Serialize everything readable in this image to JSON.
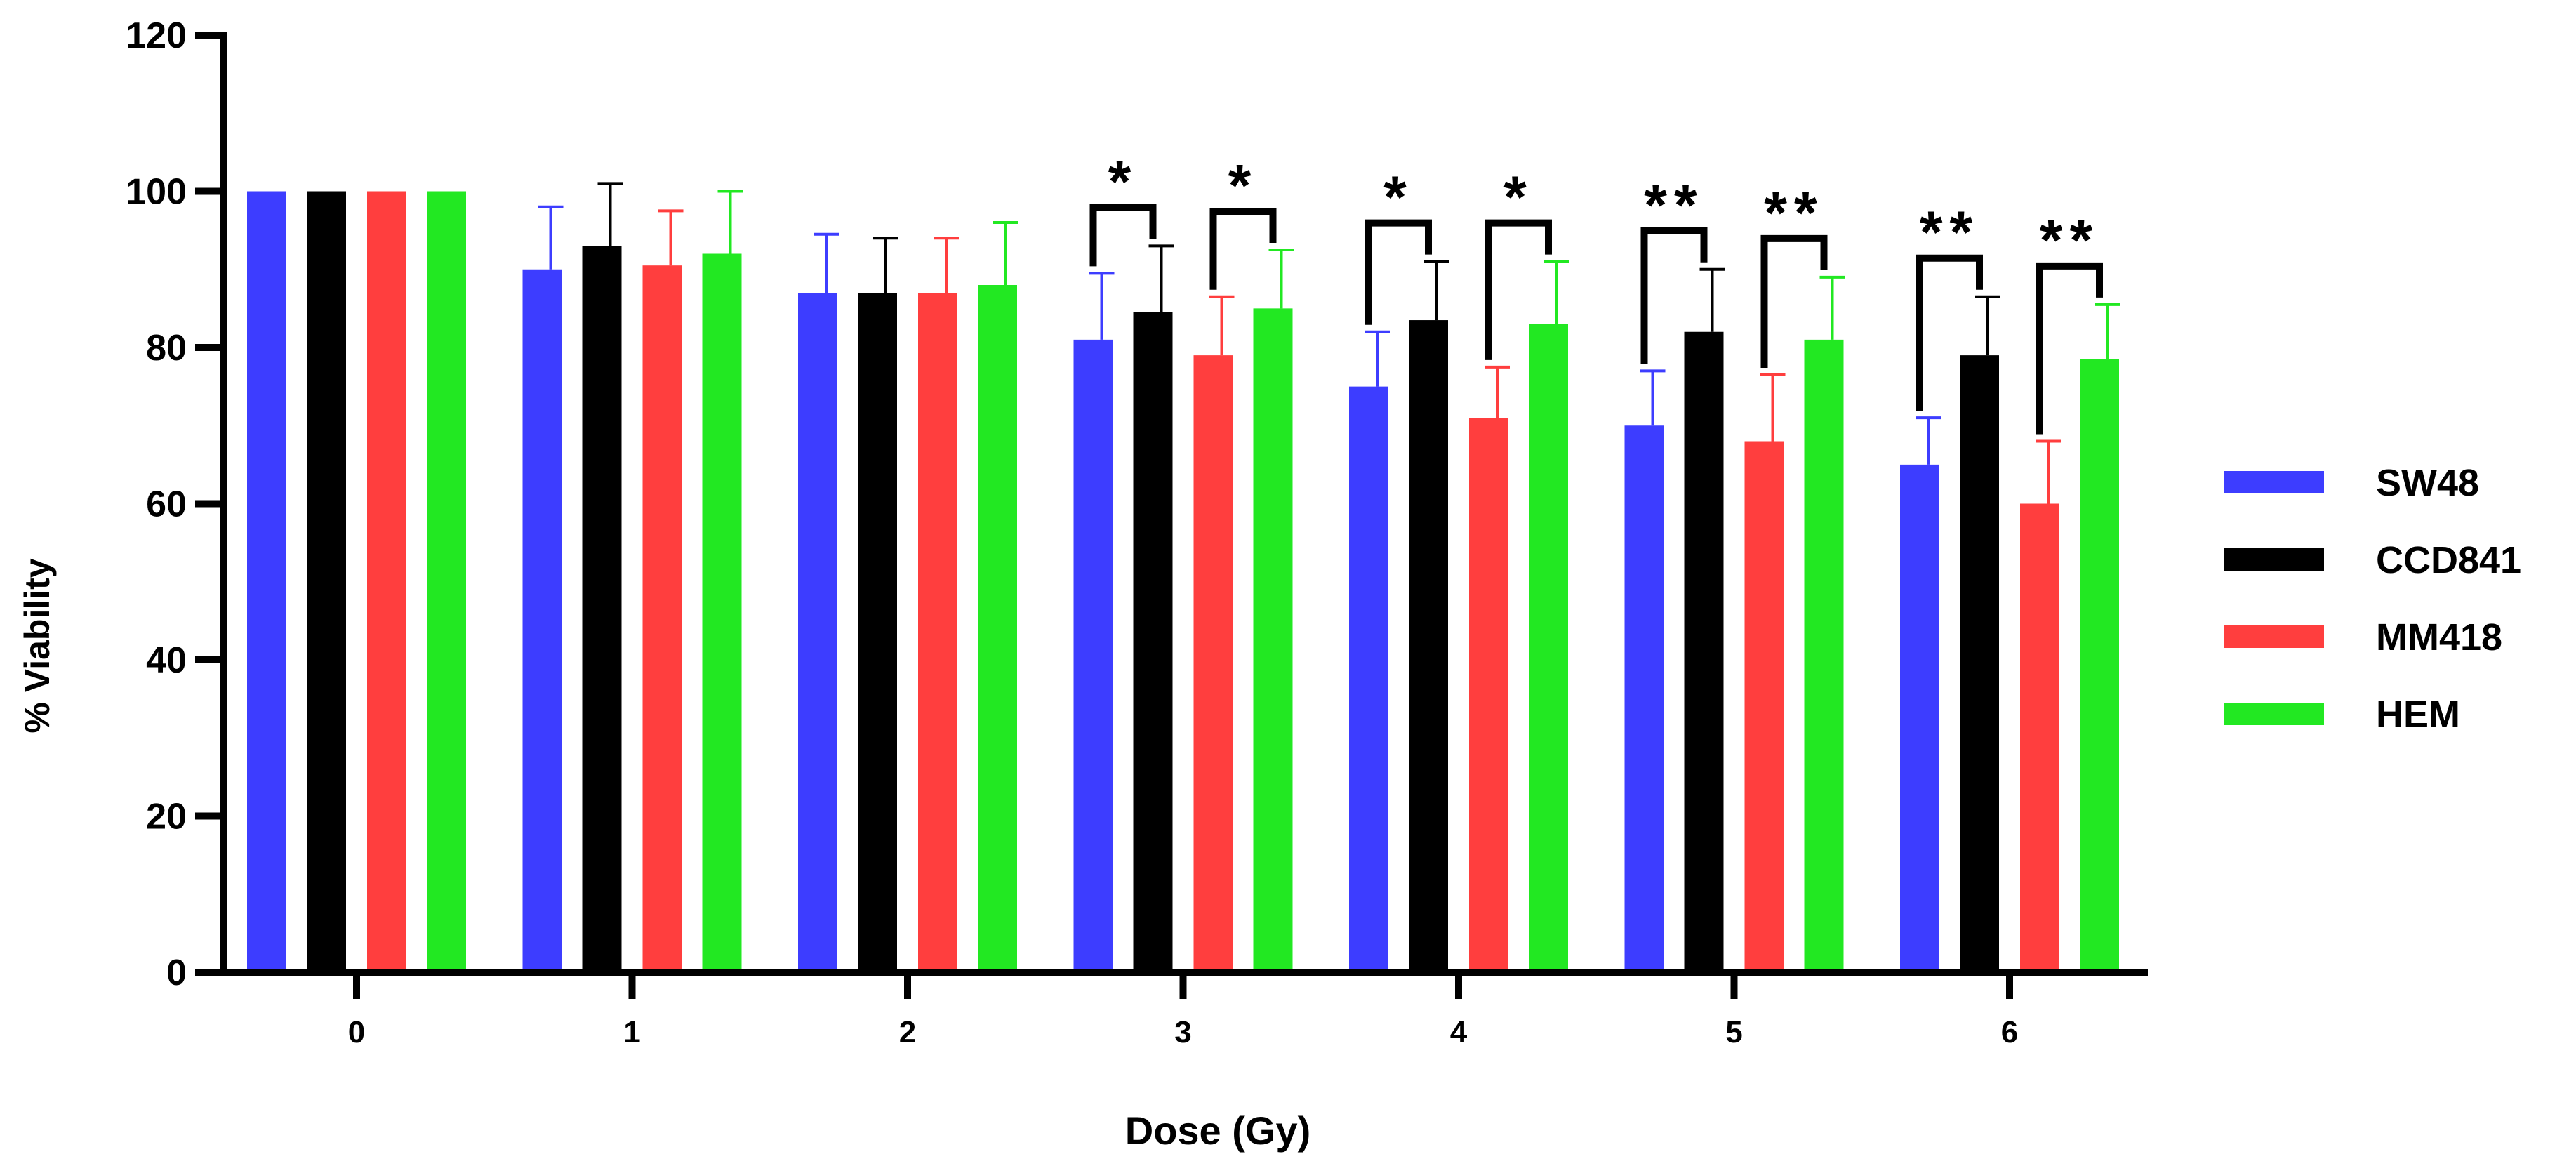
{
  "chart_data": {
    "type": "bar",
    "title": "",
    "xlabel": "Dose (Gy)",
    "ylabel": "% Viability",
    "ylim": [
      0,
      120
    ],
    "yticks": [
      0,
      20,
      40,
      60,
      80,
      100,
      120
    ],
    "categories": [
      "0",
      "1",
      "2",
      "3",
      "4",
      "5",
      "6"
    ],
    "series": [
      {
        "name": "SW48",
        "color": "#3d3dff",
        "values": [
          100,
          90,
          87,
          81,
          75,
          70,
          65
        ],
        "errors": [
          0,
          8,
          7.5,
          8.5,
          7,
          7,
          6
        ]
      },
      {
        "name": "CCD841",
        "color": "#000000",
        "values": [
          100,
          93,
          87,
          84.5,
          83.5,
          82,
          79
        ],
        "errors": [
          0,
          8,
          7,
          8.5,
          7.5,
          8,
          7.5
        ]
      },
      {
        "name": "MM418",
        "color": "#ff3e3e",
        "values": [
          100,
          90.5,
          87,
          79,
          71,
          68,
          60
        ],
        "errors": [
          0,
          7,
          7,
          7.5,
          6.5,
          8.5,
          8
        ]
      },
      {
        "name": "HEM",
        "color": "#22e822",
        "values": [
          100,
          92,
          88,
          85,
          83,
          81,
          78.5
        ],
        "errors": [
          0,
          8,
          8,
          7.5,
          8,
          8,
          7
        ]
      }
    ],
    "legend_position": "right",
    "significance": [
      {
        "category": "3",
        "pair": [
          "SW48",
          "CCD841"
        ],
        "label": "*"
      },
      {
        "category": "3",
        "pair": [
          "MM418",
          "HEM"
        ],
        "label": "*"
      },
      {
        "category": "4",
        "pair": [
          "SW48",
          "CCD841"
        ],
        "label": "*"
      },
      {
        "category": "4",
        "pair": [
          "MM418",
          "HEM"
        ],
        "label": "*"
      },
      {
        "category": "5",
        "pair": [
          "SW48",
          "CCD841"
        ],
        "label": "**"
      },
      {
        "category": "5",
        "pair": [
          "MM418",
          "HEM"
        ],
        "label": "**"
      },
      {
        "category": "6",
        "pair": [
          "SW48",
          "CCD841"
        ],
        "label": "**"
      },
      {
        "category": "6",
        "pair": [
          "MM418",
          "HEM"
        ],
        "label": "**"
      }
    ]
  }
}
